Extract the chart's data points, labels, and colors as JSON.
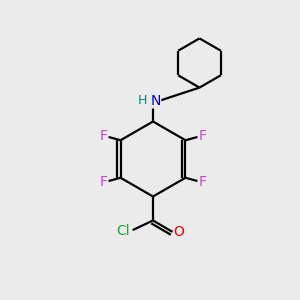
{
  "background_color": "#ebebeb",
  "bond_color": "#000000",
  "atom_colors": {
    "F": "#cc44cc",
    "N": "#0000cc",
    "H": "#008888",
    "Cl": "#22aa22",
    "O": "#ee0000",
    "C": "#000000"
  },
  "figsize": [
    3.0,
    3.0
  ],
  "dpi": 100,
  "lw": 1.6,
  "fs": 10
}
